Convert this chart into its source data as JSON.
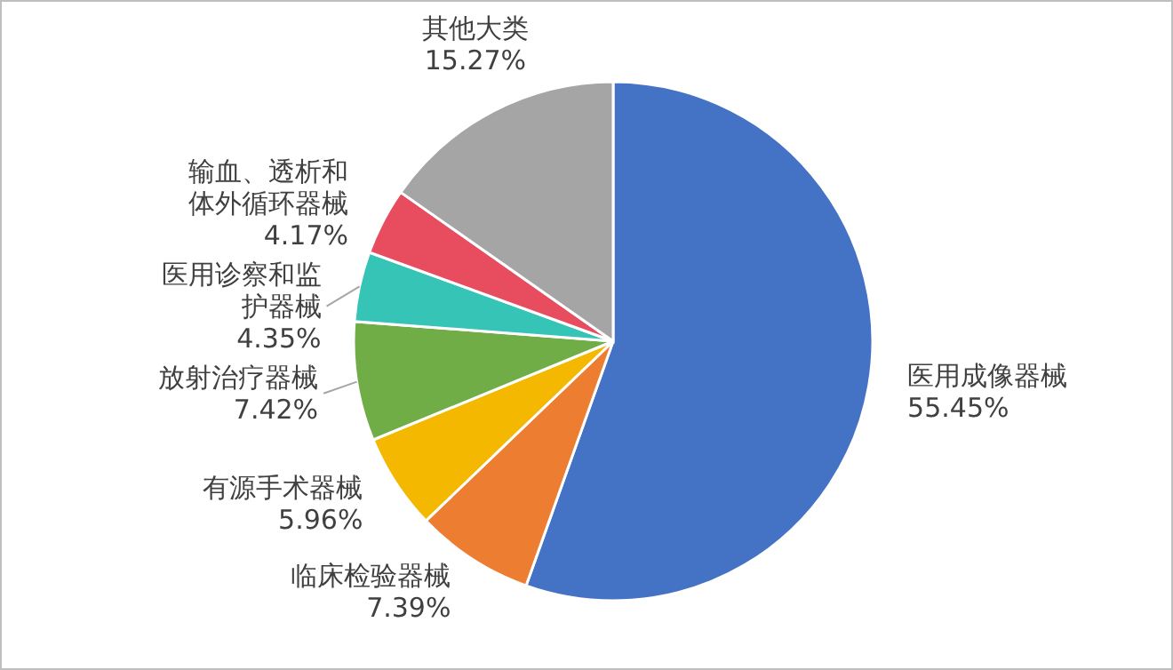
{
  "chart_data": {
    "type": "pie",
    "categories": [
      "医用成像器械",
      "临床检验器械",
      "有源手术器械",
      "放射治疗器械",
      "医用诊察和监护器械",
      "输血、透析和体外循环器械",
      "其他大类"
    ],
    "values": [
      55.45,
      7.39,
      5.96,
      7.42,
      4.35,
      4.17,
      15.27
    ],
    "colors": [
      "#4472c4",
      "#ed7d31",
      "#f5b800",
      "#70ad47",
      "#35c4b5",
      "#e84c5f",
      "#a5a5a5"
    ],
    "value_labels": [
      "55.45%",
      "7.39%",
      "5.96%",
      "7.42%",
      "4.35%",
      "4.17%",
      "15.27%"
    ]
  }
}
